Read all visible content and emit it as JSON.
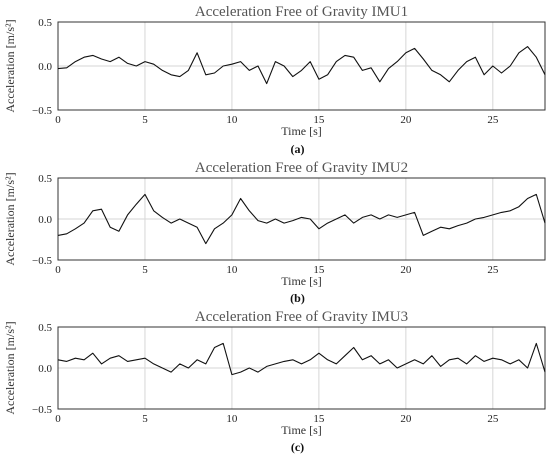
{
  "chart_data": [
    {
      "type": "line",
      "panel_label": "(a)",
      "title": "Acceleration Free of Gravity IMU1",
      "xlabel": "Time [s]",
      "ylabel": "Acceleration [m/s²]",
      "xlim": [
        0,
        28
      ],
      "ylim": [
        -0.5,
        0.5
      ],
      "xticks": [
        "0",
        "5",
        "10",
        "15",
        "20",
        "25"
      ],
      "yticks": [
        "0.5",
        "0.0",
        "−0.5"
      ],
      "grid": true,
      "series": [
        {
          "x": [
            0,
            0.5,
            1,
            1.5,
            2,
            2.5,
            3,
            3.5,
            4,
            4.5,
            5,
            5.5,
            6,
            6.5,
            7,
            7.5,
            8,
            8.5,
            9,
            9.5,
            10,
            10.5,
            11,
            11.5,
            12,
            12.5,
            13,
            13.5,
            14,
            14.5,
            15,
            15.5,
            16,
            16.5,
            17,
            17.5,
            18,
            18.5,
            19,
            19.5,
            20,
            20.5,
            21,
            21.5,
            22,
            22.5,
            23,
            23.5,
            24,
            24.5,
            25,
            25.5,
            26,
            26.5,
            27,
            27.5,
            28
          ],
          "y": [
            -0.03,
            -0.02,
            0.05,
            0.1,
            0.12,
            0.08,
            0.05,
            0.1,
            0.03,
            0.0,
            0.05,
            0.02,
            -0.05,
            -0.1,
            -0.12,
            -0.05,
            0.15,
            -0.1,
            -0.08,
            0.0,
            0.02,
            0.05,
            -0.05,
            0.0,
            -0.2,
            0.05,
            0.0,
            -0.12,
            -0.05,
            0.05,
            -0.15,
            -0.1,
            0.05,
            0.12,
            0.1,
            -0.05,
            -0.02,
            -0.18,
            -0.03,
            0.05,
            0.15,
            0.2,
            0.08,
            -0.05,
            -0.1,
            -0.18,
            -0.05,
            0.05,
            0.1,
            -0.1,
            0.0,
            -0.08,
            0.0,
            0.15,
            0.22,
            0.1,
            -0.1
          ]
        }
      ]
    },
    {
      "type": "line",
      "panel_label": "(b)",
      "title": "Acceleration Free of Gravity IMU2",
      "xlabel": "Time [s]",
      "ylabel": "Acceleration [m/s²]",
      "xlim": [
        0,
        28
      ],
      "ylim": [
        -0.5,
        0.5
      ],
      "xticks": [
        "0",
        "5",
        "10",
        "15",
        "20",
        "25"
      ],
      "yticks": [
        "0.5",
        "0.0",
        "−0.5"
      ],
      "grid": true,
      "series": [
        {
          "x": [
            0,
            0.5,
            1,
            1.5,
            2,
            2.5,
            3,
            3.5,
            4,
            4.5,
            5,
            5.5,
            6,
            6.5,
            7,
            7.5,
            8,
            8.5,
            9,
            9.5,
            10,
            10.5,
            11,
            11.5,
            12,
            12.5,
            13,
            13.5,
            14,
            14.5,
            15,
            15.5,
            16,
            16.5,
            17,
            17.5,
            18,
            18.5,
            19,
            19.5,
            20,
            20.5,
            21,
            21.5,
            22,
            22.5,
            23,
            23.5,
            24,
            24.5,
            25,
            25.5,
            26,
            26.5,
            27,
            27.5,
            28
          ],
          "y": [
            -0.2,
            -0.18,
            -0.12,
            -0.05,
            0.1,
            0.12,
            -0.1,
            -0.15,
            0.05,
            0.18,
            0.3,
            0.1,
            0.02,
            -0.05,
            0.0,
            -0.05,
            -0.1,
            -0.3,
            -0.12,
            -0.05,
            0.05,
            0.25,
            0.1,
            -0.02,
            -0.05,
            0.0,
            -0.05,
            -0.02,
            0.02,
            0.0,
            -0.12,
            -0.05,
            0.0,
            0.05,
            -0.05,
            0.02,
            0.05,
            0.0,
            0.05,
            0.02,
            0.05,
            0.08,
            -0.2,
            -0.15,
            -0.1,
            -0.12,
            -0.08,
            -0.05,
            0.0,
            0.02,
            0.05,
            0.08,
            0.1,
            0.15,
            0.25,
            0.3,
            -0.05
          ]
        }
      ]
    },
    {
      "type": "line",
      "panel_label": "(c)",
      "title": "Acceleration Free of Gravity IMU3",
      "xlabel": "Time [s]",
      "ylabel": "Acceleration [m/s²]",
      "xlim": [
        0,
        28
      ],
      "ylim": [
        -0.5,
        0.5
      ],
      "xticks": [
        "0",
        "5",
        "10",
        "15",
        "20",
        "25"
      ],
      "yticks": [
        "0.5",
        "0.0",
        "−0.5"
      ],
      "grid": true,
      "series": [
        {
          "x": [
            0,
            0.5,
            1,
            1.5,
            2,
            2.5,
            3,
            3.5,
            4,
            4.5,
            5,
            5.5,
            6,
            6.5,
            7,
            7.5,
            8,
            8.5,
            9,
            9.5,
            10,
            10.5,
            11,
            11.5,
            12,
            12.5,
            13,
            13.5,
            14,
            14.5,
            15,
            15.5,
            16,
            16.5,
            17,
            17.5,
            18,
            18.5,
            19,
            19.5,
            20,
            20.5,
            21,
            21.5,
            22,
            22.5,
            23,
            23.5,
            24,
            24.5,
            25,
            25.5,
            26,
            26.5,
            27,
            27.5,
            28
          ],
          "y": [
            0.1,
            0.08,
            0.12,
            0.1,
            0.18,
            0.05,
            0.12,
            0.15,
            0.08,
            0.1,
            0.12,
            0.05,
            0.0,
            -0.05,
            0.05,
            0.0,
            0.1,
            0.05,
            0.25,
            0.3,
            -0.08,
            -0.05,
            0.0,
            -0.05,
            0.02,
            0.05,
            0.08,
            0.1,
            0.05,
            0.1,
            0.18,
            0.1,
            0.05,
            0.15,
            0.25,
            0.1,
            0.15,
            0.05,
            0.1,
            0.0,
            0.05,
            0.1,
            0.05,
            0.15,
            0.02,
            0.1,
            0.12,
            0.05,
            0.15,
            0.08,
            0.12,
            0.1,
            0.05,
            0.1,
            0.0,
            0.3,
            -0.05
          ]
        }
      ]
    }
  ]
}
